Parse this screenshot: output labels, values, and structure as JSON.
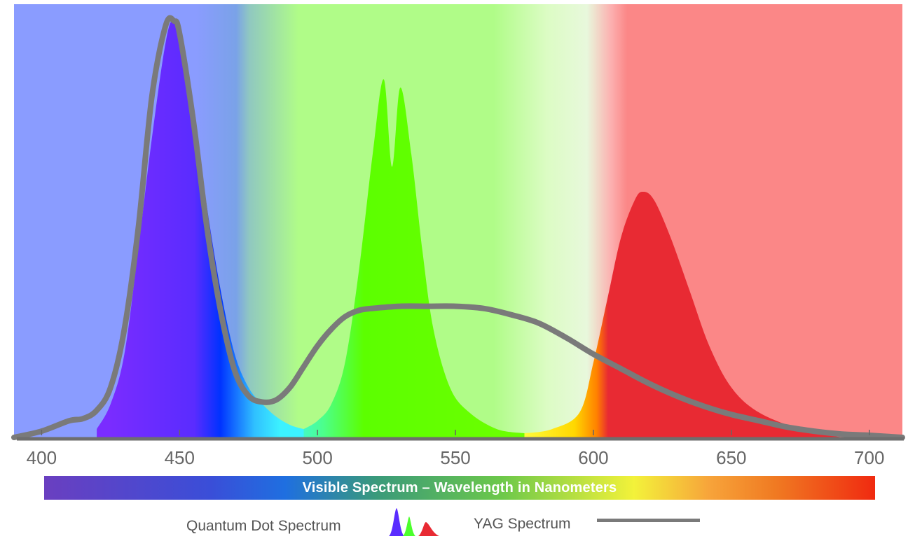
{
  "chart_data": {
    "type": "area",
    "title": "",
    "xlabel": "",
    "ylabel": "",
    "xlim": [
      390,
      712
    ],
    "ylim": [
      0,
      1
    ],
    "x_ticks": [
      400,
      450,
      500,
      550,
      600,
      650,
      700
    ],
    "grid": false,
    "spectrum_bar_label": "Visible Spectrum – Wavelength in Nanometers",
    "background_bands": [
      {
        "from": 390,
        "to": 493,
        "color": "#8a9cff"
      },
      {
        "from": 493,
        "to": 578,
        "color": "#b0fc88"
      },
      {
        "from": 578,
        "to": 604,
        "color": "#dcfcc4"
      },
      {
        "from": 604,
        "to": 712,
        "color": "#fb8787"
      }
    ],
    "series": [
      {
        "name": "Quantum Dot Spectrum",
        "kind": "filled-peaks",
        "peaks": [
          {
            "center": 448,
            "x": [
              420,
              425,
              430,
              435,
              440,
              445,
              448,
              452,
              456,
              460,
              465,
              470,
              475,
              480,
              485,
              490,
              495
            ],
            "y": [
              0.02,
              0.08,
              0.2,
              0.45,
              0.72,
              0.95,
              1.0,
              0.93,
              0.75,
              0.55,
              0.35,
              0.2,
              0.12,
              0.08,
              0.05,
              0.03,
              0.02
            ],
            "colors": [
              "#7a2cff",
              "#6a2cff",
              "#0030ff",
              "#3cf2ff"
            ]
          },
          {
            "center": 527,
            "x": [
              495,
              500,
              505,
              510,
              515,
              520,
              524,
              527,
              530,
              534,
              538,
              542,
              548,
              555,
              565,
              575
            ],
            "y": [
              0.02,
              0.04,
              0.08,
              0.18,
              0.4,
              0.68,
              0.86,
              0.65,
              0.84,
              0.68,
              0.45,
              0.26,
              0.12,
              0.06,
              0.02,
              0.01
            ],
            "colors": [
              "#4cff8c",
              "#5cff1a",
              "#5cff00",
              "#6cff00"
            ]
          },
          {
            "center": 617,
            "x": [
              575,
              585,
              595,
              600,
              605,
              610,
              615,
              618,
              622,
              628,
              635,
              642,
              650,
              660,
              675,
              690
            ],
            "y": [
              0.01,
              0.02,
              0.06,
              0.18,
              0.33,
              0.48,
              0.57,
              0.59,
              0.57,
              0.48,
              0.35,
              0.22,
              0.12,
              0.06,
              0.02,
              0.0
            ],
            "colors": [
              "#ffee00",
              "#ffa000",
              "#e82a33",
              "#e82a33"
            ]
          }
        ]
      },
      {
        "name": "YAG Spectrum",
        "kind": "line",
        "color": "#7a7a7a",
        "x": [
          390,
          400,
          410,
          415,
          420,
          425,
          430,
          435,
          440,
          445,
          448,
          450,
          455,
          460,
          465,
          470,
          475,
          480,
          485,
          490,
          495,
          500,
          505,
          510,
          515,
          520,
          530,
          540,
          550,
          560,
          570,
          580,
          590,
          600,
          610,
          620,
          630,
          640,
          650,
          660,
          670,
          680,
          690,
          700,
          712
        ],
        "y": [
          0.0,
          0.015,
          0.04,
          0.045,
          0.065,
          0.12,
          0.26,
          0.5,
          0.82,
          0.99,
          1.0,
          0.97,
          0.76,
          0.5,
          0.3,
          0.16,
          0.1,
          0.085,
          0.09,
          0.12,
          0.17,
          0.22,
          0.26,
          0.29,
          0.305,
          0.31,
          0.315,
          0.315,
          0.315,
          0.31,
          0.295,
          0.275,
          0.24,
          0.2,
          0.165,
          0.13,
          0.1,
          0.075,
          0.055,
          0.04,
          0.025,
          0.015,
          0.008,
          0.005,
          0.0
        ]
      }
    ]
  },
  "legend": {
    "qd_label": "Quantum Dot Spectrum",
    "yag_label": "YAG Spectrum"
  }
}
